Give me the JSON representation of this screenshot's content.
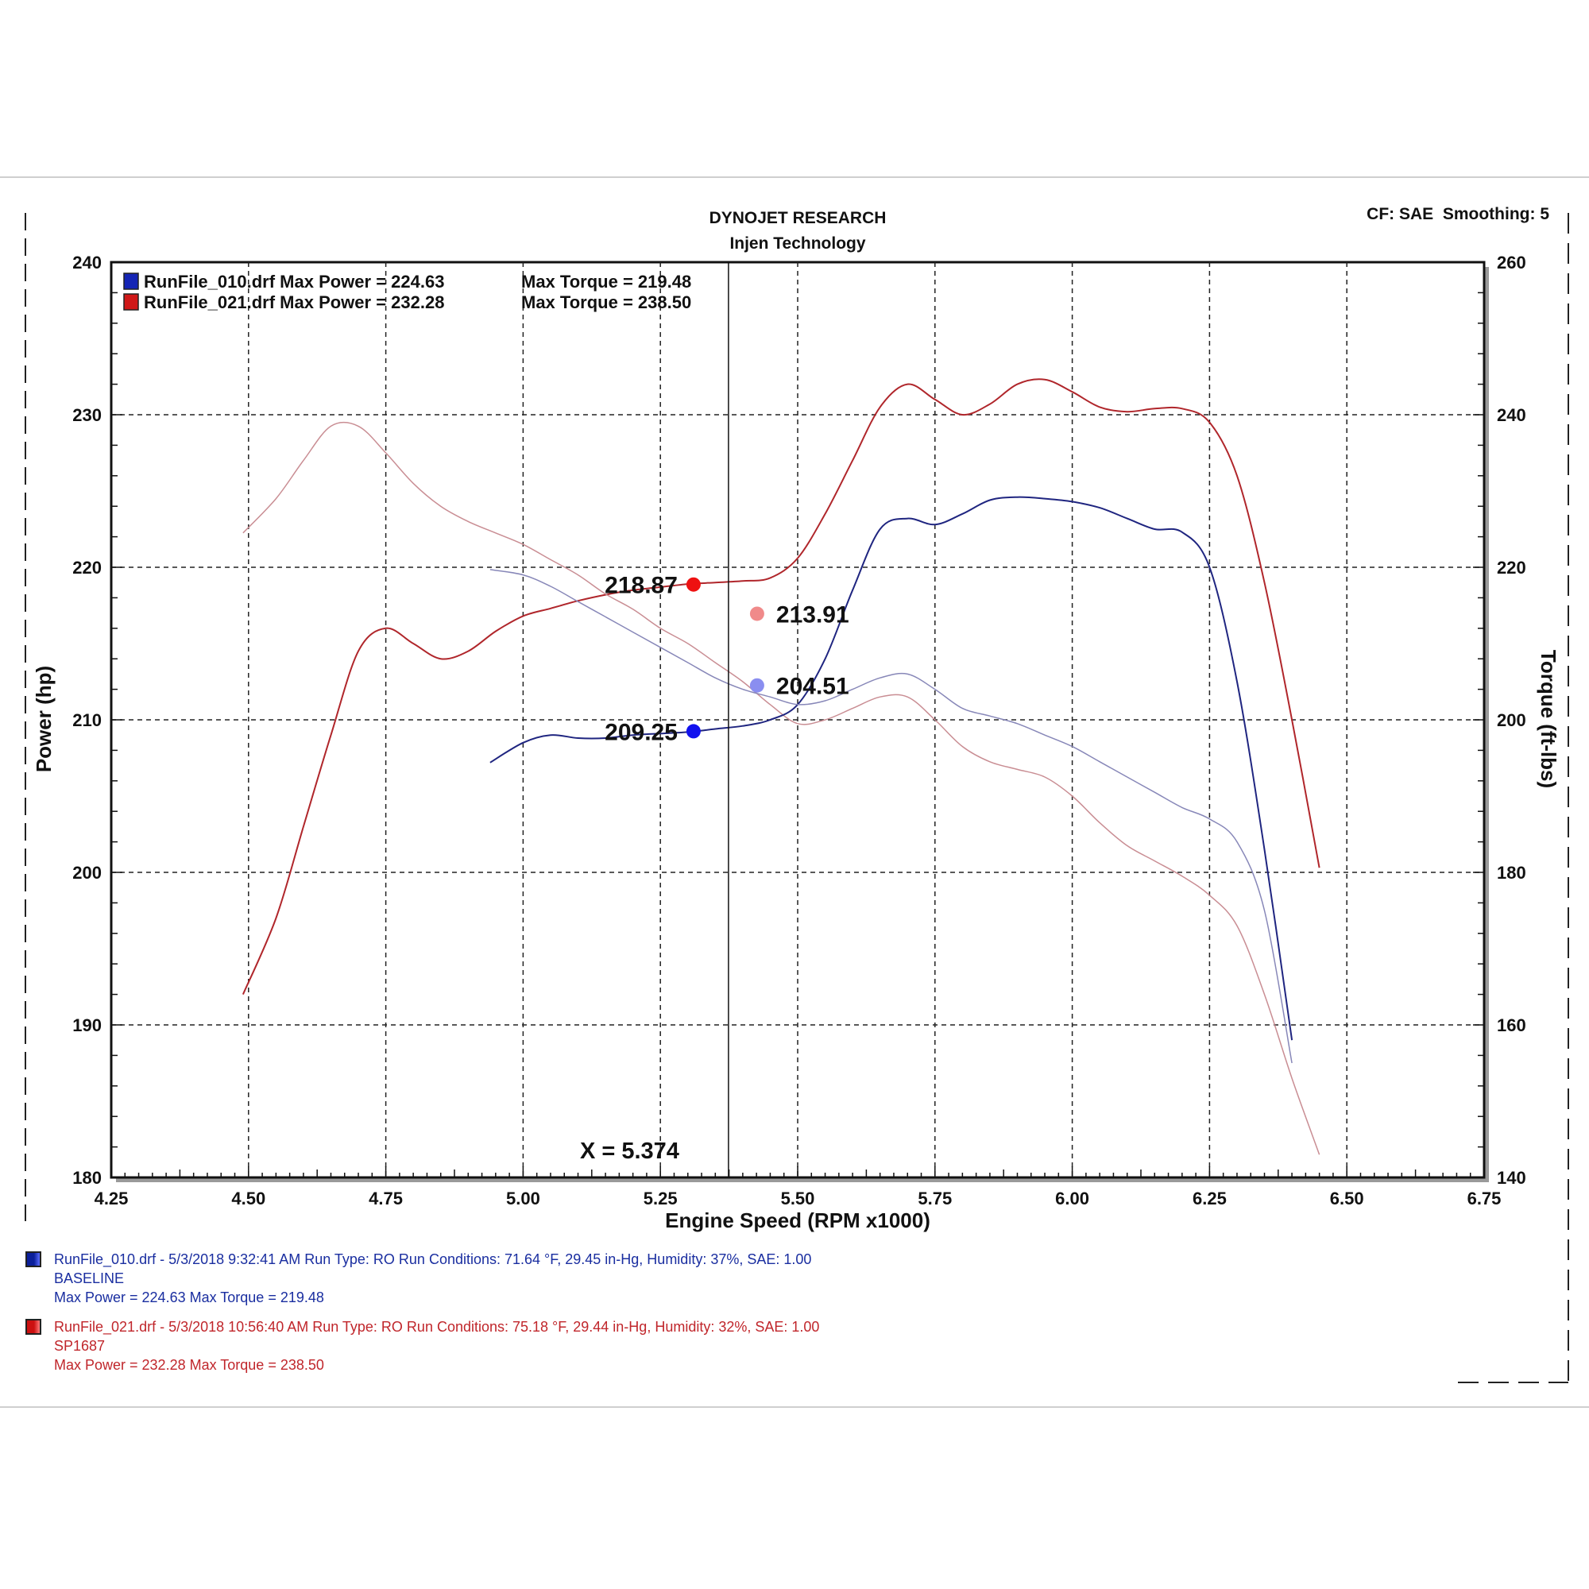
{
  "header": {
    "title": "DYNOJET RESEARCH",
    "subtitle": "Injen Technology",
    "settings": "CF: SAE  Smoothing: 5"
  },
  "chart_data": {
    "type": "line",
    "xlabel": "Engine Speed (RPM x1000)",
    "ylabel_left": "Power (hp)",
    "ylabel_right": "Torque (ft-lbs)",
    "xlim": [
      4.25,
      6.75
    ],
    "ylim_left": [
      180,
      240
    ],
    "ylim_right": [
      140,
      260
    ],
    "x_ticks": [
      "4.25",
      "4.50",
      "4.75",
      "5.00",
      "5.25",
      "5.50",
      "5.75",
      "6.00",
      "6.25",
      "6.50",
      "6.75"
    ],
    "y_ticks_left": [
      "180",
      "190",
      "200",
      "210",
      "220",
      "230",
      "240"
    ],
    "y_ticks_right": [
      "140",
      "160",
      "180",
      "200",
      "220",
      "240",
      "260"
    ],
    "grid": true,
    "cursor": {
      "x": 5.374,
      "label": "X = 5.374"
    },
    "legend": [
      {
        "name": "RunFile_010.drf",
        "power_text": "Max Power = 224.63",
        "torque_text": "Max Torque = 219.48",
        "color": "#1525b5"
      },
      {
        "name": "RunFile_021.drf",
        "power_text": "Max Power = 232.28",
        "torque_text": "Max Torque = 238.50",
        "color": "#d01818"
      }
    ],
    "series": [
      {
        "name": "RunFile_021.drf",
        "kind": "power",
        "axis": "left",
        "color": "#b0262b",
        "width": 2,
        "x": [
          4.49,
          4.55,
          4.6,
          4.65,
          4.7,
          4.75,
          4.8,
          4.85,
          4.9,
          4.95,
          5.0,
          5.05,
          5.1,
          5.15,
          5.2,
          5.25,
          5.3,
          5.35,
          5.4,
          5.45,
          5.5,
          5.55,
          5.6,
          5.65,
          5.7,
          5.75,
          5.8,
          5.85,
          5.9,
          5.95,
          6.0,
          6.05,
          6.1,
          6.15,
          6.2,
          6.25,
          6.3,
          6.35,
          6.4,
          6.45
        ],
        "y": [
          192.0,
          197.0,
          203.0,
          209.0,
          214.5,
          216.0,
          215.0,
          214.0,
          214.5,
          215.8,
          216.8,
          217.3,
          217.8,
          218.2,
          218.5,
          218.7,
          218.9,
          219.0,
          219.1,
          219.3,
          220.6,
          223.5,
          227.0,
          230.5,
          232.0,
          231.0,
          230.0,
          230.7,
          232.0,
          232.3,
          231.5,
          230.5,
          230.2,
          230.4,
          230.4,
          229.5,
          226.0,
          219.0,
          210.0,
          200.3
        ]
      },
      {
        "name": "RunFile_021.drf",
        "kind": "torque",
        "axis": "right",
        "color": "#c98d93",
        "width": 1.5,
        "x": [
          4.49,
          4.55,
          4.6,
          4.65,
          4.7,
          4.75,
          4.8,
          4.85,
          4.9,
          4.95,
          5.0,
          5.05,
          5.1,
          5.15,
          5.2,
          5.25,
          5.3,
          5.35,
          5.4,
          5.45,
          5.5,
          5.55,
          5.6,
          5.65,
          5.7,
          5.75,
          5.8,
          5.85,
          5.9,
          5.95,
          6.0,
          6.05,
          6.1,
          6.15,
          6.2,
          6.25,
          6.3,
          6.35,
          6.4,
          6.45
        ],
        "y": [
          224.5,
          229.0,
          234.0,
          238.5,
          238.5,
          235.0,
          231.0,
          228.0,
          226.0,
          224.5,
          223.0,
          221.0,
          219.0,
          216.5,
          214.5,
          212.0,
          210.0,
          207.5,
          205.0,
          202.0,
          199.5,
          200.0,
          201.5,
          203.0,
          203.0,
          200.0,
          196.5,
          194.5,
          193.5,
          192.5,
          190.0,
          186.5,
          183.5,
          181.5,
          179.5,
          177.0,
          173.0,
          164.0,
          153.0,
          143.0
        ]
      },
      {
        "name": "RunFile_010.drf",
        "kind": "power",
        "axis": "left",
        "color": "#1f2580",
        "width": 2,
        "x": [
          4.94,
          5.0,
          5.05,
          5.1,
          5.15,
          5.2,
          5.25,
          5.3,
          5.35,
          5.4,
          5.45,
          5.5,
          5.55,
          5.6,
          5.65,
          5.7,
          5.75,
          5.8,
          5.85,
          5.9,
          5.95,
          6.0,
          6.05,
          6.1,
          6.15,
          6.2,
          6.25,
          6.3,
          6.35,
          6.4
        ],
        "y": [
          207.2,
          208.5,
          209.0,
          208.8,
          208.8,
          209.0,
          209.1,
          209.2,
          209.4,
          209.6,
          210.0,
          211.0,
          214.0,
          218.5,
          222.5,
          223.2,
          222.8,
          223.5,
          224.4,
          224.6,
          224.5,
          224.3,
          223.9,
          223.2,
          222.5,
          222.3,
          220.0,
          212.5,
          201.5,
          189.0
        ]
      },
      {
        "name": "RunFile_010.drf",
        "kind": "torque",
        "axis": "right",
        "color": "#8787b8",
        "width": 1.5,
        "x": [
          4.94,
          5.0,
          5.05,
          5.1,
          5.15,
          5.2,
          5.25,
          5.3,
          5.35,
          5.4,
          5.45,
          5.5,
          5.55,
          5.6,
          5.65,
          5.7,
          5.75,
          5.8,
          5.85,
          5.9,
          5.95,
          6.0,
          6.05,
          6.1,
          6.15,
          6.2,
          6.25,
          6.3,
          6.35,
          6.4
        ],
        "y": [
          219.7,
          219.0,
          217.5,
          215.5,
          213.5,
          211.5,
          209.5,
          207.5,
          205.5,
          204.0,
          203.0,
          202.0,
          202.5,
          204.0,
          205.5,
          206.0,
          204.0,
          201.5,
          200.5,
          199.5,
          198.0,
          196.5,
          194.5,
          192.5,
          190.5,
          188.5,
          187.0,
          184.0,
          175.0,
          155.0
        ]
      }
    ],
    "cursor_values": [
      {
        "label": "218.87",
        "axis": "left",
        "value": 218.87,
        "dot_color": "#ee1111",
        "side": "left"
      },
      {
        "label": "213.91",
        "axis": "right",
        "value": 213.91,
        "dot_color": "#f08a8a",
        "side": "right"
      },
      {
        "label": "204.51",
        "axis": "right",
        "value": 204.51,
        "dot_color": "#8a8ef0",
        "side": "right"
      },
      {
        "label": "209.25",
        "axis": "left",
        "value": 209.25,
        "dot_color": "#1111ee",
        "side": "left"
      }
    ]
  },
  "run_info": [
    {
      "line1": "RunFile_010.drf - 5/3/2018 9:32:41 AM  Run Type: RO  Run Conditions: 71.64 °F, 29.45 in-Hg,  Humidity:  37%, SAE: 1.00",
      "line2": "BASELINE",
      "line3": "Max Power = 224.63  Max Torque = 219.48"
    },
    {
      "line1": "RunFile_021.drf - 5/3/2018 10:56:40 AM  Run Type: RO  Run Conditions: 75.18 °F, 29.44 in-Hg,  Humidity:  32%, SAE: 1.00",
      "line2": "SP1687",
      "line3": "Max Power = 232.28  Max Torque = 238.50"
    }
  ]
}
